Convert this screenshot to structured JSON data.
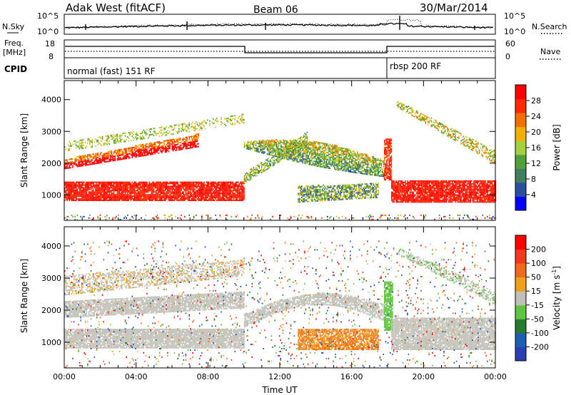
{
  "header": {
    "station": "Adak West (fitACF)",
    "beam": "Beam 06",
    "date": "30/Mar/2014"
  },
  "noise_panel": {
    "left_label": "N.Sky",
    "right_label": "N.Search",
    "left_ticks": [
      "10^5",
      "10^0"
    ],
    "right_ticks": [
      "10^5",
      "10^0"
    ]
  },
  "freq_panel": {
    "left_label_line1": "Freq.",
    "left_label_line2": "[MHz]",
    "left_ticks": [
      "18",
      "8"
    ],
    "right_label": "Nave",
    "right_ticks": [
      "60",
      "0"
    ]
  },
  "cpid_panel": {
    "label": "CPID",
    "segments": [
      {
        "start_hour": 0,
        "end_hour": 18,
        "label": "normal (fast) 151 RF"
      },
      {
        "start_hour": 18,
        "end_hour": 24,
        "label": "rbsp 200 RF"
      }
    ]
  },
  "colors": {
    "power_scale": [
      "#0000ff",
      "#2a4f9c",
      "#3f7e5e",
      "#51a13a",
      "#a4d040",
      "#f2b100",
      "#f27000",
      "#ff2a00",
      "#ff0000"
    ],
    "velocity_scale": [
      "#2b3fb3",
      "#1f5db5",
      "#247a2f",
      "#5fc440",
      "#c0c0b8",
      "#f0a01e",
      "#f06a1e",
      "#f03a1e",
      "#ff0000"
    ],
    "ground_scatter": "#c3c3bb"
  },
  "chart_data": [
    {
      "type": "heatmap",
      "panel": "power",
      "ylabel": "Slant Range [km]",
      "yticks": [
        "4000",
        "3000",
        "2000",
        "1000"
      ],
      "ylim": [
        200,
        4600
      ],
      "xlim": [
        0,
        24
      ],
      "colorbar": {
        "label": "Power [dB]",
        "ticks": [
          "28",
          "24",
          "20",
          "16",
          "12",
          "8",
          "4"
        ],
        "range": [
          0,
          30
        ]
      },
      "features": [
        {
          "name": "lower_band",
          "hours": [
            0,
            10
          ],
          "range_km": [
            900,
            1500
          ],
          "power_db": 28
        },
        {
          "name": "upper_band",
          "hours": [
            0,
            7
          ],
          "range_km": [
            1850,
            2650
          ],
          "power_db": 26
        },
        {
          "name": "arc",
          "hours": [
            10,
            18
          ],
          "range_km": [
            1600,
            2600
          ],
          "power_db": 12
        },
        {
          "name": "low_arc",
          "hours": [
            13,
            17.5
          ],
          "range_km": [
            800,
            1400
          ],
          "power_db": 18
        },
        {
          "name": "late_band",
          "hours": [
            18,
            24
          ],
          "range_km": [
            800,
            1500
          ],
          "power_db": 28
        }
      ]
    },
    {
      "type": "heatmap",
      "panel": "velocity",
      "ylabel": "Slant Range [km]",
      "yticks": [
        "4000",
        "3000",
        "2000",
        "1000"
      ],
      "ylim": [
        200,
        4600
      ],
      "xlim": [
        0,
        24
      ],
      "xlabel": "Time UT",
      "xticks": [
        "00:00",
        "04:00",
        "08:00",
        "12:00",
        "16:00",
        "20:00",
        "00:00"
      ],
      "colorbar": {
        "label": "Velocity [m s",
        "label_sup": "-1",
        "label_end": "]",
        "ticks": [
          "200",
          "100",
          "50",
          "15",
          "-15",
          "-50",
          "-100",
          "-200"
        ],
        "range": [
          -250,
          250
        ]
      }
    }
  ]
}
